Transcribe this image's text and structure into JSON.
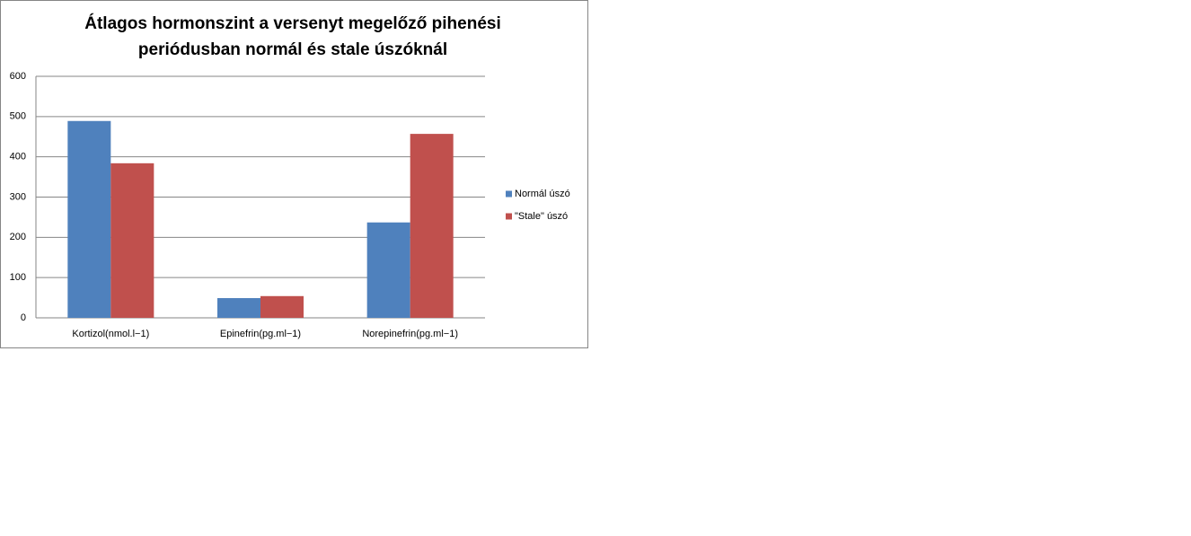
{
  "chart_data": {
    "type": "bar",
    "title": "Átlagos hormonszint a versenyt megelőző pihenési periódusban normál és stale úszóknál",
    "categories": [
      "Kortizol(nmol.l−1)",
      "Epinefrin(pg.ml−1)",
      "Norepinefrin(pg.ml−1)"
    ],
    "series": [
      {
        "name": "Normál úszó",
        "color": "#4f81bd",
        "values": [
          489,
          49,
          237
        ]
      },
      {
        "name": "\"Stale\" úszó",
        "color": "#c0504d",
        "values": [
          384,
          54,
          457
        ]
      }
    ],
    "ylim": [
      0,
      600
    ],
    "yticks": [
      0,
      100,
      200,
      300,
      400,
      500,
      600
    ],
    "grid": true,
    "legend": "right"
  }
}
